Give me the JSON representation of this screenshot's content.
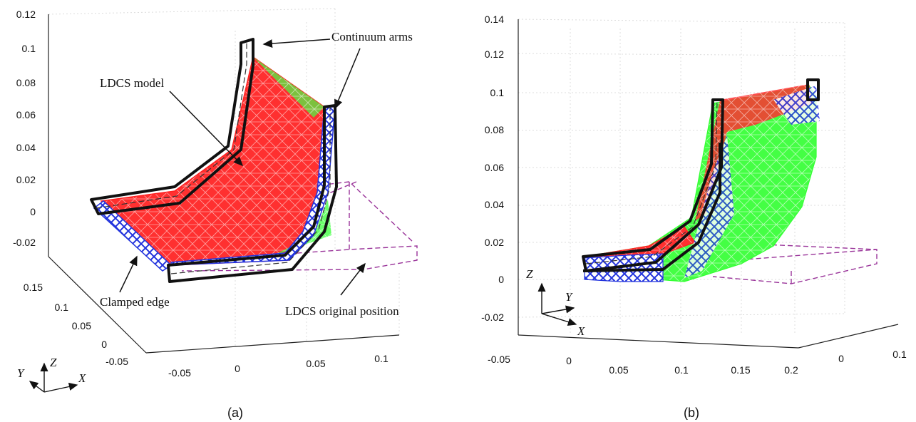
{
  "panel_a": {
    "caption": "(a)",
    "z_ticks": [
      "0.12",
      "0.1",
      "0.08",
      "0.06",
      "0.04",
      "0.02",
      "0",
      "-0.02"
    ],
    "y_ticks": [
      "0.15",
      "0.1",
      "0.05",
      "0",
      "-0.05"
    ],
    "x_ticks": [
      "-0.05",
      "0",
      "0.05",
      "0.1"
    ],
    "annotations": {
      "continuum_arms": "Continuum arms",
      "ldcs_model": "LDCS model",
      "clamped_edge": "Clamped edge",
      "ldcs_original": "LDCS original position"
    },
    "triad": {
      "z": "Z",
      "y": "Y",
      "x": "X"
    }
  },
  "panel_b": {
    "caption": "(b)",
    "z_ticks": [
      "0.14",
      "0.12",
      "0.1",
      "0.08",
      "0.06",
      "0.04",
      "0.02",
      "0",
      "-0.02"
    ],
    "x_ticks": [
      "-0.05",
      "0",
      "0.05",
      "0.1",
      "0.15",
      "0.2"
    ],
    "y_ticks": [
      "0",
      "0.1"
    ],
    "triad": {
      "z": "Z",
      "y": "Y",
      "x": "X"
    }
  },
  "colors": {
    "mesh_red": "#ff2020",
    "mesh_green": "#33ff33",
    "mesh_blue": "#2233dd",
    "arm_black": "#111111",
    "original_purple": "#993399",
    "grid": "#d0d0d0"
  }
}
